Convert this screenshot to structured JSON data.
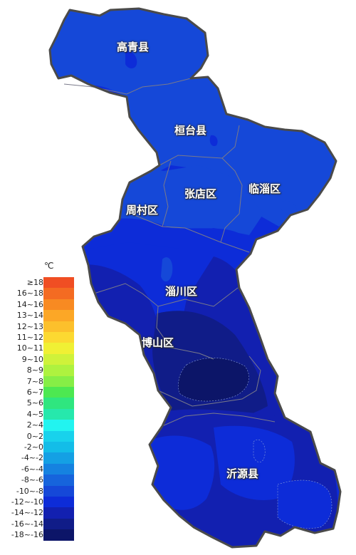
{
  "map": {
    "districts": [
      {
        "name": "高青县",
        "key": "gaoqing"
      },
      {
        "name": "桓台县",
        "key": "huantai"
      },
      {
        "name": "临淄区",
        "key": "linzi"
      },
      {
        "name": "张店区",
        "key": "zhangdian"
      },
      {
        "name": "周村区",
        "key": "zhoucun"
      },
      {
        "name": "淄川区",
        "key": "zichuan"
      },
      {
        "name": "博山区",
        "key": "boshan"
      },
      {
        "name": "沂源县",
        "key": "yiyuan"
      }
    ]
  },
  "legend": {
    "unit": "℃",
    "items": [
      {
        "label": "≥18",
        "color": "#f04e23"
      },
      {
        "label": "16~18",
        "color": "#f46b22"
      },
      {
        "label": "14~16",
        "color": "#f88a22"
      },
      {
        "label": "13~14",
        "color": "#fca726"
      },
      {
        "label": "12~13",
        "color": "#fcc02c"
      },
      {
        "label": "11~12",
        "color": "#fcd931"
      },
      {
        "label": "10~11",
        "color": "#f0f034"
      },
      {
        "label": "9~10",
        "color": "#cff23a"
      },
      {
        "label": "8~9",
        "color": "#aef23f"
      },
      {
        "label": "7~8",
        "color": "#86ee46"
      },
      {
        "label": "6~7",
        "color": "#4de851"
      },
      {
        "label": "5~6",
        "color": "#2fe67f"
      },
      {
        "label": "4~5",
        "color": "#26e8ac"
      },
      {
        "label": "2~4",
        "color": "#22f4f0"
      },
      {
        "label": "0~2",
        "color": "#18d2ec"
      },
      {
        "label": "-2~0",
        "color": "#13bde8"
      },
      {
        "label": "-4~-2",
        "color": "#14a0e4"
      },
      {
        "label": "-6~-4",
        "color": "#1582e0"
      },
      {
        "label": "-8~-6",
        "color": "#1664dc"
      },
      {
        "label": "-10~-8",
        "color": "#1548d8"
      },
      {
        "label": "-12~-10",
        "color": "#0d2cd8"
      },
      {
        "label": "-14~-12",
        "color": "#1220b0"
      },
      {
        "label": "-16~-14",
        "color": "#101c88"
      },
      {
        "label": "-18~-16",
        "color": "#0c1568"
      }
    ]
  }
}
